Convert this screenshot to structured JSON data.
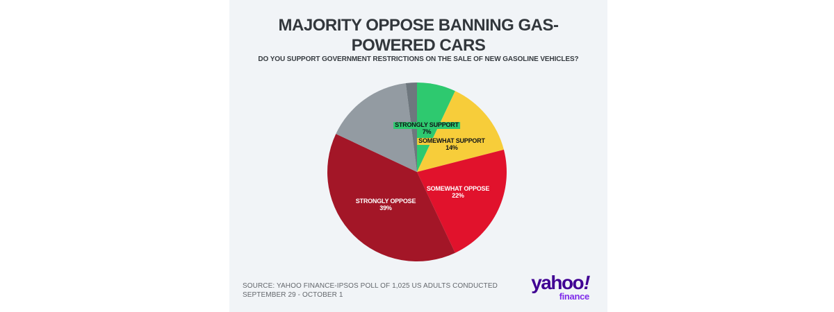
{
  "header": {
    "title": "MAJORITY OPPOSE BANNING GAS-POWERED CARS",
    "question": "DO YOU SUPPORT GOVERNMENT RESTRICTIONS ON THE SALE OF NEW GASOLINE VEHICLES?"
  },
  "chart_data": {
    "type": "pie",
    "title": "MAJORITY OPPOSE BANNING GAS-POWERED CARS",
    "subtitle": "DO YOU SUPPORT GOVERNMENT RESTRICTIONS ON THE SALE OF NEW GASOLINE VEHICLES?",
    "unit": "percent",
    "start_angle_deg": 0,
    "direction": "clockwise",
    "legend": "none",
    "grid": false,
    "slices": [
      {
        "label": "STRONGLY SUPPORT",
        "value": 7,
        "pct_label": "7%",
        "color": "#2ec96f",
        "text_color": "#101417",
        "label_highlight": true
      },
      {
        "label": "SOMEWHAT SUPPORT",
        "value": 14,
        "pct_label": "14%",
        "color": "#f7cd3a",
        "text_color": "#101417",
        "label_highlight": true
      },
      {
        "label": "SOMEWHAT OPPOSE",
        "value": 22,
        "pct_label": "22%",
        "color": "#e1122c",
        "text_color": "#ffffff",
        "label_highlight": false
      },
      {
        "label": "STRONGLY OPPOSE",
        "value": 39,
        "pct_label": "39%",
        "color": "#a31627",
        "text_color": "#ffffff",
        "label_highlight": false
      },
      {
        "label": "",
        "value": 16,
        "pct_label": "",
        "color": "#939ba2",
        "text_color": "",
        "label_highlight": false
      },
      {
        "label": "",
        "value": 2,
        "pct_label": "",
        "color": "#6e777e",
        "text_color": "",
        "label_highlight": false
      }
    ]
  },
  "footer": {
    "source": "SOURCE: YAHOO FINANCE-IPSOS POLL OF 1,025 US ADULTS CONDUCTED SEPTEMBER 29 - OCTOBER 1",
    "logo": {
      "brand": "yahoo! finance",
      "wordmark_text": "yahoo",
      "wordmark_bang": "!",
      "subbrand": "finance",
      "wordmark_color": "#400093",
      "subbrand_color": "#7e2aea"
    }
  },
  "colors": {
    "page_background": "#ffffff",
    "panel_background": "#f1f4f7",
    "title_text": "#32373c",
    "subtitle_text": "#363b40",
    "source_text": "#63676c"
  }
}
